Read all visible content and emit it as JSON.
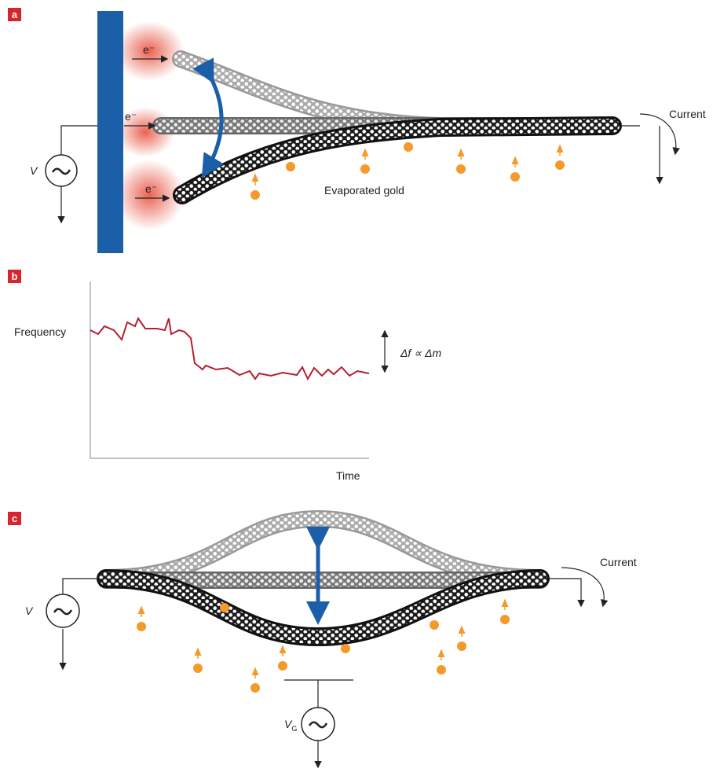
{
  "panels": [
    {
      "label": "a",
      "electron_labels": [
        "e⁻",
        "e⁻",
        "e⁻"
      ],
      "source_label": "V",
      "current_label": "Current",
      "gold_label": "Evaporated gold"
    },
    {
      "label": "b",
      "y_label": "Frequency",
      "x_label": "Time",
      "annotation": "Δf ∝ Δm"
    },
    {
      "label": "c",
      "source_label": "V",
      "current_label": "Current",
      "gate_label": {
        "main": "V",
        "subscript": "G"
      }
    }
  ]
}
